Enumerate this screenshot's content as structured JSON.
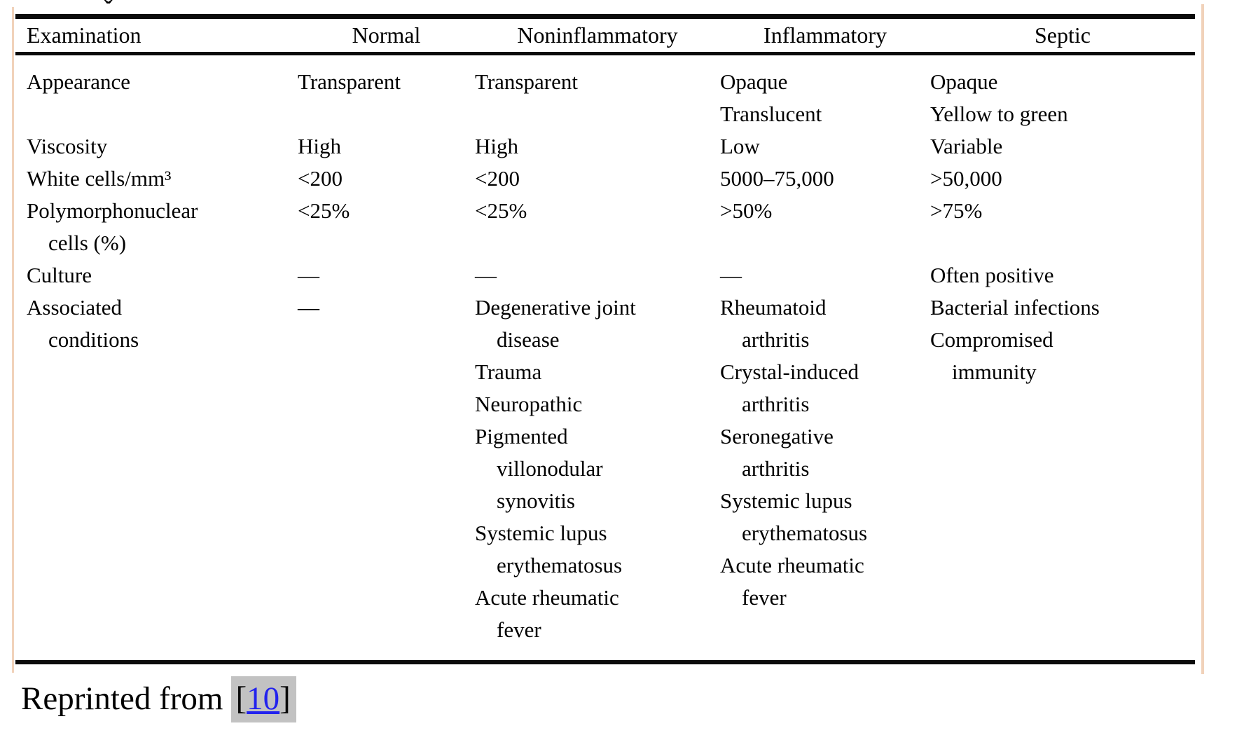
{
  "page": {
    "stray_mark": "ˇ"
  },
  "table": {
    "columns": [
      {
        "key": "examination",
        "label": "Examination"
      },
      {
        "key": "normal",
        "label": "Normal"
      },
      {
        "key": "noninflammatory",
        "label": "Noninflammatory"
      },
      {
        "key": "inflammatory",
        "label": "Inflammatory"
      },
      {
        "key": "septic",
        "label": "Septic"
      }
    ],
    "rows": [
      {
        "examination": "Appearance",
        "normal": "Transparent",
        "noninflammatory": "Transparent",
        "inflammatory": "Opaque\nTranslucent",
        "septic": "Opaque\nYellow to green"
      },
      {
        "examination": "Viscosity",
        "normal": "High",
        "noninflammatory": "High",
        "inflammatory": "Low",
        "septic": "Variable"
      },
      {
        "examination": "White cells/mm³",
        "normal": "<200",
        "noninflammatory": "<200",
        "inflammatory": "5000–75,000",
        "septic": ">50,000"
      },
      {
        "examination": "Polymorphonuclear\n    cells (%)",
        "normal": "<25%",
        "noninflammatory": "<25%",
        "inflammatory": ">50%",
        "septic": ">75%"
      },
      {
        "examination": "Culture",
        "normal": "—",
        "noninflammatory": "—",
        "inflammatory": "—",
        "septic": "Often positive"
      },
      {
        "examination": "Associated\n    conditions",
        "normal": "—",
        "noninflammatory": "Degenerative joint\n    disease\nTrauma\nNeuropathic\nPigmented\n    villonodular\n    synovitis\nSystemic lupus\n    erythematosus\nAcute rheumatic\n    fever",
        "inflammatory": "Rheumatoid\n    arthritis\nCrystal-induced\n    arthritis\nSeronegative\n    arthritis\nSystemic lupus\n    erythematosus\nAcute rheumatic\n    fever",
        "septic": "Bacterial infections\nCompromised\n    immunity"
      }
    ]
  },
  "footer": {
    "prefix": "Reprinted from",
    "bracket_open": "[",
    "citation": "10",
    "bracket_close": "]"
  },
  "colors": {
    "rule": "#0b0b0b",
    "link_blue": "#2222ee",
    "citation_highlight": "#c2c2c2",
    "page_edge_line": "#f1d2ba"
  }
}
